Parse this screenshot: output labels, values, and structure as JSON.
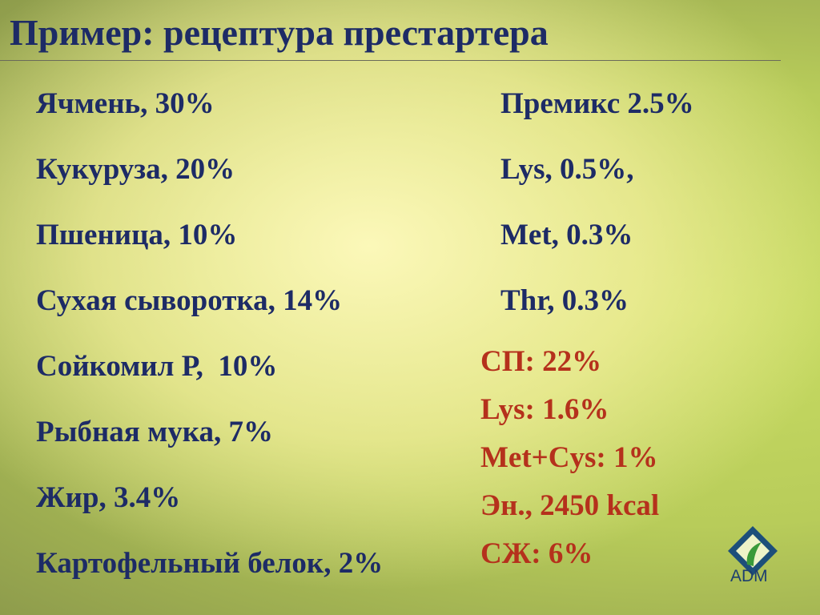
{
  "title": "Пример: рецептура престартера",
  "ingredients": [
    "Ячмень, 30%",
    "Кукуруза, 20%",
    "Пшеница, 10%",
    "Сухая сыворотка, 14%",
    "Сойкомил Р,  10%",
    "Рыбная мука, 7%",
    "Жир, 3.4%",
    "Картофельный белок, 2%"
  ],
  "additives": [
    "Премикс 2.5%",
    "Lys, 0.5%,",
    "Met, 0.3%",
    "Thr, 0.3%"
  ],
  "nutrients": [
    "СП: 22%",
    "Lys: 1.6%",
    "Met+Cys: 1%",
    "Эн., 2450 kcal",
    "СЖ: 6%"
  ],
  "logo": "ADM"
}
